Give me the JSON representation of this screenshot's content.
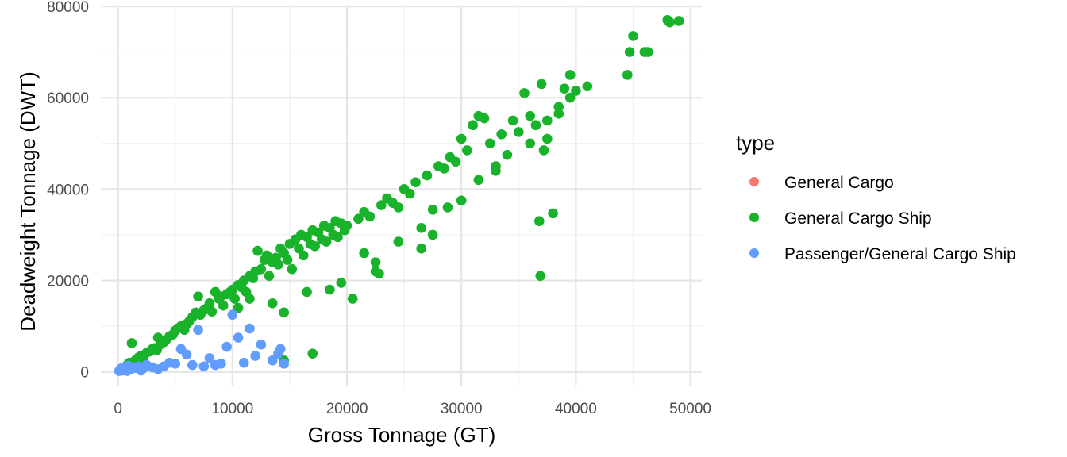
{
  "chart_data": {
    "type": "scatter",
    "title": "",
    "xlabel": "Gross Tonnage (GT)",
    "ylabel": "Deadweight Tonnage (DWT)",
    "xlim": [
      -1500,
      51000
    ],
    "ylim": [
      -3000,
      80000
    ],
    "x_ticks": [
      0,
      10000,
      20000,
      30000,
      40000,
      50000
    ],
    "x_tick_labels": [
      "0",
      "10000",
      "20000",
      "30000",
      "40000",
      "50000"
    ],
    "y_ticks": [
      0,
      20000,
      40000,
      60000,
      80000
    ],
    "y_tick_labels": [
      "0",
      "20000",
      "40000",
      "60000",
      "80000"
    ],
    "grid": true,
    "legend": {
      "title": "type",
      "position": "right"
    },
    "series": [
      {
        "name": "General Cargo",
        "color": "#F8766D",
        "points": []
      },
      {
        "name": "General Cargo Ship",
        "color": "#18B22B",
        "points": [
          [
            500,
            900
          ],
          [
            800,
            1500
          ],
          [
            1000,
            2000
          ],
          [
            1200,
            6300
          ],
          [
            1500,
            2500
          ],
          [
            1800,
            3200
          ],
          [
            2000,
            3500
          ],
          [
            2200,
            3000
          ],
          [
            2500,
            4200
          ],
          [
            2800,
            4500
          ],
          [
            3000,
            5000
          ],
          [
            3200,
            5200
          ],
          [
            3400,
            4800
          ],
          [
            3500,
            7500
          ],
          [
            3700,
            6000
          ],
          [
            4000,
            6500
          ],
          [
            4200,
            7000
          ],
          [
            4500,
            7800
          ],
          [
            4800,
            8200
          ],
          [
            5000,
            9000
          ],
          [
            5200,
            9500
          ],
          [
            5500,
            10000
          ],
          [
            5800,
            9200
          ],
          [
            6000,
            10500
          ],
          [
            6200,
            11000
          ],
          [
            6500,
            12000
          ],
          [
            6800,
            13000
          ],
          [
            7000,
            16500
          ],
          [
            7200,
            12500
          ],
          [
            7500,
            13500
          ],
          [
            7800,
            14000
          ],
          [
            8000,
            15000
          ],
          [
            8200,
            13200
          ],
          [
            8500,
            17500
          ],
          [
            8800,
            16000
          ],
          [
            9000,
            16500
          ],
          [
            9200,
            14500
          ],
          [
            9500,
            17000
          ],
          [
            9800,
            17500
          ],
          [
            10000,
            18000
          ],
          [
            10200,
            16000
          ],
          [
            10500,
            19000
          ],
          [
            10800,
            18500
          ],
          [
            11000,
            20000
          ],
          [
            11200,
            17500
          ],
          [
            11500,
            21000
          ],
          [
            11800,
            20500
          ],
          [
            12000,
            22000
          ],
          [
            12200,
            26500
          ],
          [
            12500,
            22500
          ],
          [
            12800,
            24500
          ],
          [
            13000,
            25500
          ],
          [
            13200,
            21000
          ],
          [
            13500,
            24000
          ],
          [
            13800,
            25000
          ],
          [
            14000,
            23500
          ],
          [
            14200,
            27000
          ],
          [
            14500,
            26000
          ],
          [
            14800,
            24500
          ],
          [
            15000,
            28000
          ],
          [
            15200,
            22500
          ],
          [
            15500,
            29000
          ],
          [
            15800,
            27000
          ],
          [
            16000,
            30000
          ],
          [
            16200,
            25500
          ],
          [
            16500,
            29500
          ],
          [
            16800,
            28000
          ],
          [
            17000,
            31000
          ],
          [
            17200,
            27500
          ],
          [
            17500,
            30500
          ],
          [
            17800,
            29000
          ],
          [
            18000,
            32000
          ],
          [
            18200,
            28500
          ],
          [
            18500,
            31500
          ],
          [
            18800,
            30000
          ],
          [
            19000,
            33000
          ],
          [
            19200,
            29500
          ],
          [
            19500,
            32500
          ],
          [
            19800,
            31000
          ],
          [
            20000,
            32000
          ],
          [
            20500,
            16000
          ],
          [
            21000,
            33500
          ],
          [
            21500,
            35000
          ],
          [
            22000,
            34000
          ],
          [
            22500,
            22000
          ],
          [
            22800,
            21500
          ],
          [
            23000,
            36500
          ],
          [
            23500,
            38000
          ],
          [
            24000,
            37000
          ],
          [
            24500,
            36000
          ],
          [
            25000,
            40000
          ],
          [
            25500,
            39000
          ],
          [
            26000,
            41500
          ],
          [
            26500,
            27000
          ],
          [
            27000,
            43000
          ],
          [
            27500,
            30000
          ],
          [
            28000,
            45000
          ],
          [
            28500,
            44500
          ],
          [
            29000,
            47000
          ],
          [
            29500,
            46000
          ],
          [
            30000,
            51000
          ],
          [
            30500,
            48500
          ],
          [
            31000,
            54000
          ],
          [
            31500,
            56000
          ],
          [
            32000,
            55500
          ],
          [
            32500,
            50000
          ],
          [
            33000,
            45000
          ],
          [
            33500,
            52000
          ],
          [
            34500,
            55000
          ],
          [
            35000,
            52500
          ],
          [
            35500,
            61000
          ],
          [
            36000,
            56000
          ],
          [
            36500,
            54000
          ],
          [
            36800,
            33000
          ],
          [
            36900,
            21000
          ],
          [
            37000,
            63000
          ],
          [
            37200,
            48500
          ],
          [
            37500,
            51000
          ],
          [
            38000,
            34700
          ],
          [
            38500,
            56500
          ],
          [
            39000,
            62000
          ],
          [
            39500,
            65000
          ],
          [
            40000,
            61500
          ],
          [
            41000,
            62500
          ],
          [
            44500,
            65000
          ],
          [
            44700,
            70000
          ],
          [
            45000,
            73500
          ],
          [
            46000,
            70000
          ],
          [
            46300,
            70000
          ],
          [
            48000,
            77000
          ],
          [
            48200,
            76500
          ],
          [
            49000,
            76800
          ],
          [
            14500,
            2500
          ],
          [
            17000,
            4000
          ],
          [
            10500,
            14000
          ],
          [
            11500,
            16000
          ],
          [
            13500,
            15000
          ],
          [
            14500,
            13000
          ],
          [
            16500,
            17500
          ],
          [
            18500,
            18000
          ],
          [
            19500,
            19500
          ],
          [
            21500,
            26000
          ],
          [
            22500,
            24000
          ],
          [
            24500,
            28500
          ],
          [
            26500,
            31500
          ],
          [
            27500,
            35500
          ],
          [
            28800,
            36000
          ],
          [
            30000,
            37500
          ],
          [
            31500,
            42000
          ],
          [
            33000,
            44000
          ],
          [
            34000,
            47500
          ],
          [
            36000,
            50000
          ],
          [
            37500,
            55000
          ],
          [
            38500,
            58000
          ],
          [
            39500,
            60000
          ]
        ]
      },
      {
        "name": "Passenger/General Cargo Ship",
        "color": "#619CFF",
        "points": [
          [
            100,
            200
          ],
          [
            200,
            500
          ],
          [
            300,
            800
          ],
          [
            400,
            300
          ],
          [
            500,
            1000
          ],
          [
            600,
            400
          ],
          [
            700,
            600
          ],
          [
            800,
            200
          ],
          [
            900,
            1300
          ],
          [
            1000,
            500
          ],
          [
            1200,
            700
          ],
          [
            1500,
            900
          ],
          [
            1800,
            1200
          ],
          [
            2000,
            300
          ],
          [
            2200,
            800
          ],
          [
            2500,
            1500
          ],
          [
            3000,
            1000
          ],
          [
            3500,
            600
          ],
          [
            4000,
            1200
          ],
          [
            4500,
            2000
          ],
          [
            5000,
            1800
          ],
          [
            5500,
            5000
          ],
          [
            6000,
            3800
          ],
          [
            6500,
            1500
          ],
          [
            7000,
            9200
          ],
          [
            7500,
            1200
          ],
          [
            8000,
            3000
          ],
          [
            8500,
            1500
          ],
          [
            9000,
            1800
          ],
          [
            9500,
            5500
          ],
          [
            10000,
            12500
          ],
          [
            10500,
            7500
          ],
          [
            11000,
            2000
          ],
          [
            11500,
            9500
          ],
          [
            12000,
            3500
          ],
          [
            12500,
            6000
          ],
          [
            13500,
            2500
          ],
          [
            14000,
            4000
          ],
          [
            14200,
            5000
          ],
          [
            14500,
            1800
          ]
        ]
      }
    ]
  }
}
